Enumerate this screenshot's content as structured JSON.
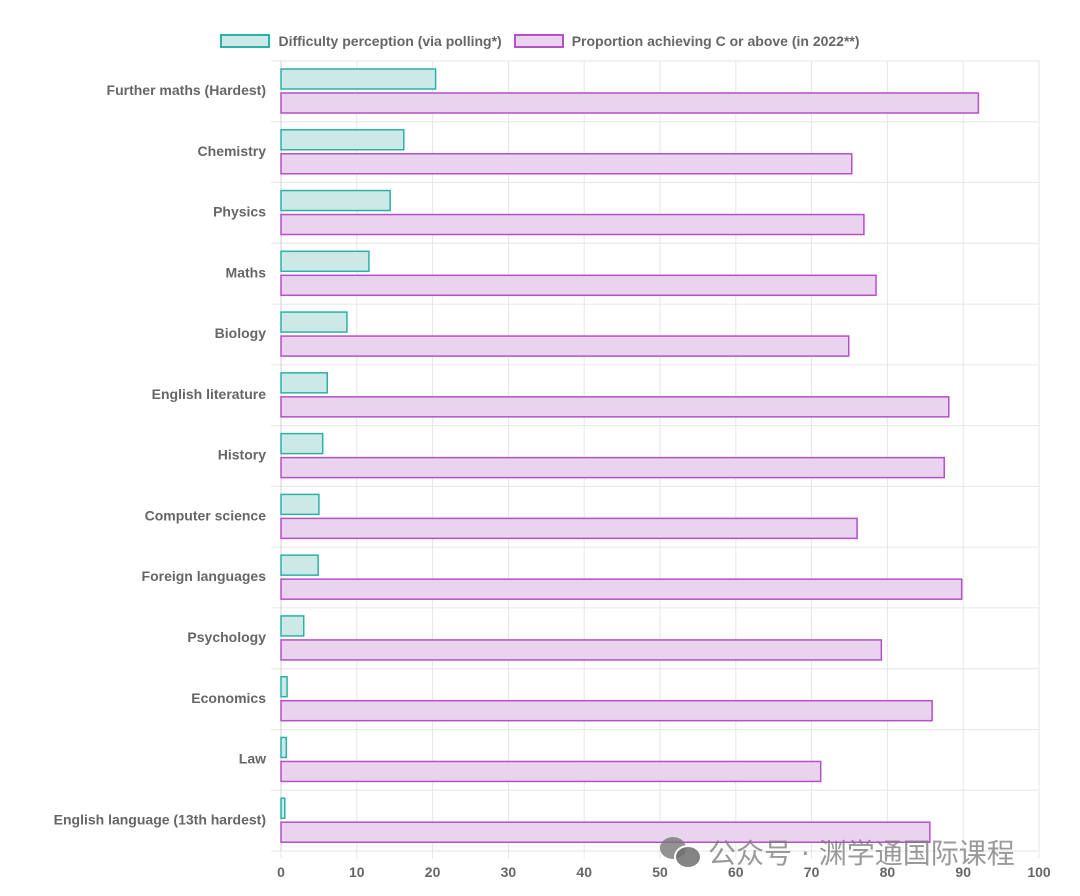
{
  "chart_data": {
    "type": "bar",
    "orientation": "horizontal",
    "title": "",
    "xlabel": "",
    "ylabel": "",
    "xlim": [
      0,
      100
    ],
    "x_ticks": [
      "0",
      "10",
      "20",
      "30",
      "40",
      "50",
      "60",
      "70",
      "80",
      "90",
      "100"
    ],
    "grid": true,
    "legend_position": "top-center",
    "categories": [
      "Further maths (Hardest)",
      "Chemistry",
      "Physics",
      "Maths",
      "Biology",
      "English literature",
      "History",
      "Computer science",
      "Foreign languages",
      "Psychology",
      "Economics",
      "Law",
      "English language (13th hardest)"
    ],
    "series": [
      {
        "name": "Difficulty perception (via polling*)",
        "fill": "#cce9e7",
        "stroke": "#2ab3a4",
        "values": [
          20.4,
          16.2,
          14.4,
          11.6,
          8.7,
          6.1,
          5.5,
          5.0,
          4.9,
          3.0,
          0.8,
          0.7,
          0.5
        ]
      },
      {
        "name": "Proportion achieving C or above (in 2022**)",
        "fill": "#e9d3ee",
        "stroke": "#b64fc8",
        "values": [
          92.0,
          75.3,
          76.9,
          78.5,
          74.9,
          88.1,
          87.5,
          76.0,
          89.8,
          79.2,
          85.9,
          71.2,
          85.6
        ]
      }
    ]
  },
  "watermark": {
    "text": "公众号 · 渊学通国际课程",
    "icon": "wechat-icon"
  }
}
